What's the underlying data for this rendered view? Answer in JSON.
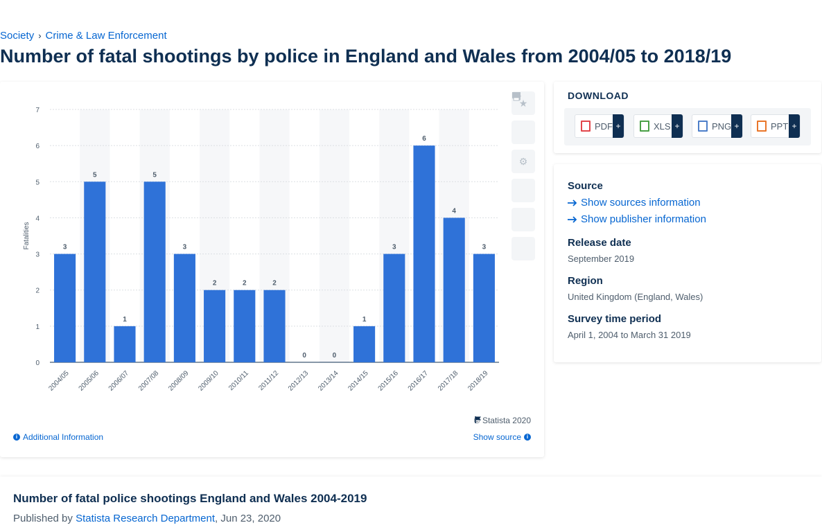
{
  "breadcrumb": {
    "items": [
      "Society",
      "Crime & Law Enforcement"
    ]
  },
  "page_title": "Number of fatal shootings by police in England and Wales from 2004/05 to 2018/19",
  "chart_data": {
    "type": "bar",
    "categories": [
      "2004/05",
      "2005/06",
      "2006/07",
      "2007/08",
      "2008/09",
      "2009/10",
      "2010/11",
      "2011/12",
      "2012/13",
      "2013/14",
      "2014/15",
      "2015/16",
      "2016/17",
      "2017/18",
      "2018/19"
    ],
    "values": [
      3,
      5,
      1,
      5,
      3,
      2,
      2,
      2,
      0,
      0,
      1,
      3,
      6,
      4,
      3
    ],
    "ylabel": "Fatalities",
    "yticks": [
      0,
      1,
      2,
      3,
      4,
      5,
      6,
      7
    ],
    "ylim": [
      0,
      7
    ],
    "grid": true,
    "bar_color": "#2f72d8"
  },
  "chart_footer": {
    "copyright": "© Statista 2020",
    "additional_info": "Additional Information",
    "show_source": "Show source"
  },
  "toolbar": [
    "star-icon",
    "bell-icon",
    "gear-icon",
    "share-icon",
    "quote-icon",
    "print-icon"
  ],
  "download": {
    "title": "DOWNLOAD",
    "buttons": [
      {
        "label": "PDF",
        "color": "#e2464b",
        "plus": "+"
      },
      {
        "label": "XLS",
        "color": "#4aa046",
        "plus": "+"
      },
      {
        "label": "PNG",
        "color": "#4d7fc9",
        "plus": "+"
      },
      {
        "label": "PPT",
        "color": "#e9762a",
        "plus": "+"
      }
    ]
  },
  "info": {
    "source_label": "Source",
    "show_sources": "Show sources information",
    "show_publisher": "Show publisher information",
    "release_label": "Release date",
    "release_value": "September 2019",
    "region_label": "Region",
    "region_value": "United Kingdom (England, Wales)",
    "survey_label": "Survey time period",
    "survey_value": "April 1, 2004 to March 31 2019"
  },
  "bottom": {
    "title": "Number of fatal police shootings England and Wales 2004-2019",
    "published_prefix": "Published by",
    "publisher": "Statista Research Department",
    "date": ", Jun 23, 2020"
  }
}
